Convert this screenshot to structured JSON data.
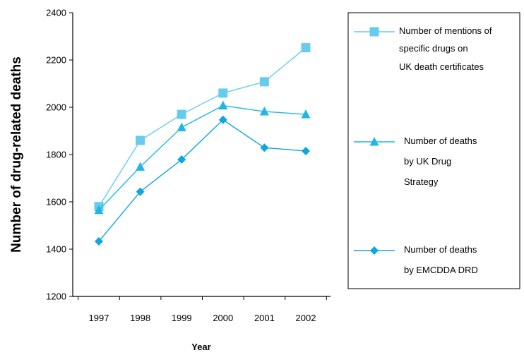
{
  "chart_data": {
    "type": "line",
    "title": "",
    "xlabel": "Year",
    "ylabel": "Number of drug-related deaths",
    "x": [
      "1997",
      "1998",
      "1999",
      "2000",
      "2001",
      "2002"
    ],
    "ylim": [
      1200,
      2400
    ],
    "yticks": [
      "1200",
      "1400",
      "1600",
      "1800",
      "2000",
      "2200",
      "2400"
    ],
    "grid": false,
    "legend_position": "right",
    "series": [
      {
        "name_lines": [
          "Number of mentions of",
          "specific drugs on",
          "UK death certificates"
        ],
        "marker": "square",
        "color": "#66ccee",
        "values": [
          1580,
          1860,
          1970,
          2060,
          2108,
          2252
        ]
      },
      {
        "name_lines": [
          "Number of deaths",
          "by UK Drug",
          "Strategy"
        ],
        "marker": "triangle",
        "color": "#1fb8e6",
        "values": [
          1565,
          1748,
          1915,
          2007,
          1982,
          1970
        ]
      },
      {
        "name_lines": [
          "Number of deaths",
          "by EMCDDA DRD"
        ],
        "marker": "diamond",
        "color": "#0ea5e0",
        "values": [
          1433,
          1643,
          1779,
          1947,
          1829,
          1815
        ]
      }
    ]
  }
}
